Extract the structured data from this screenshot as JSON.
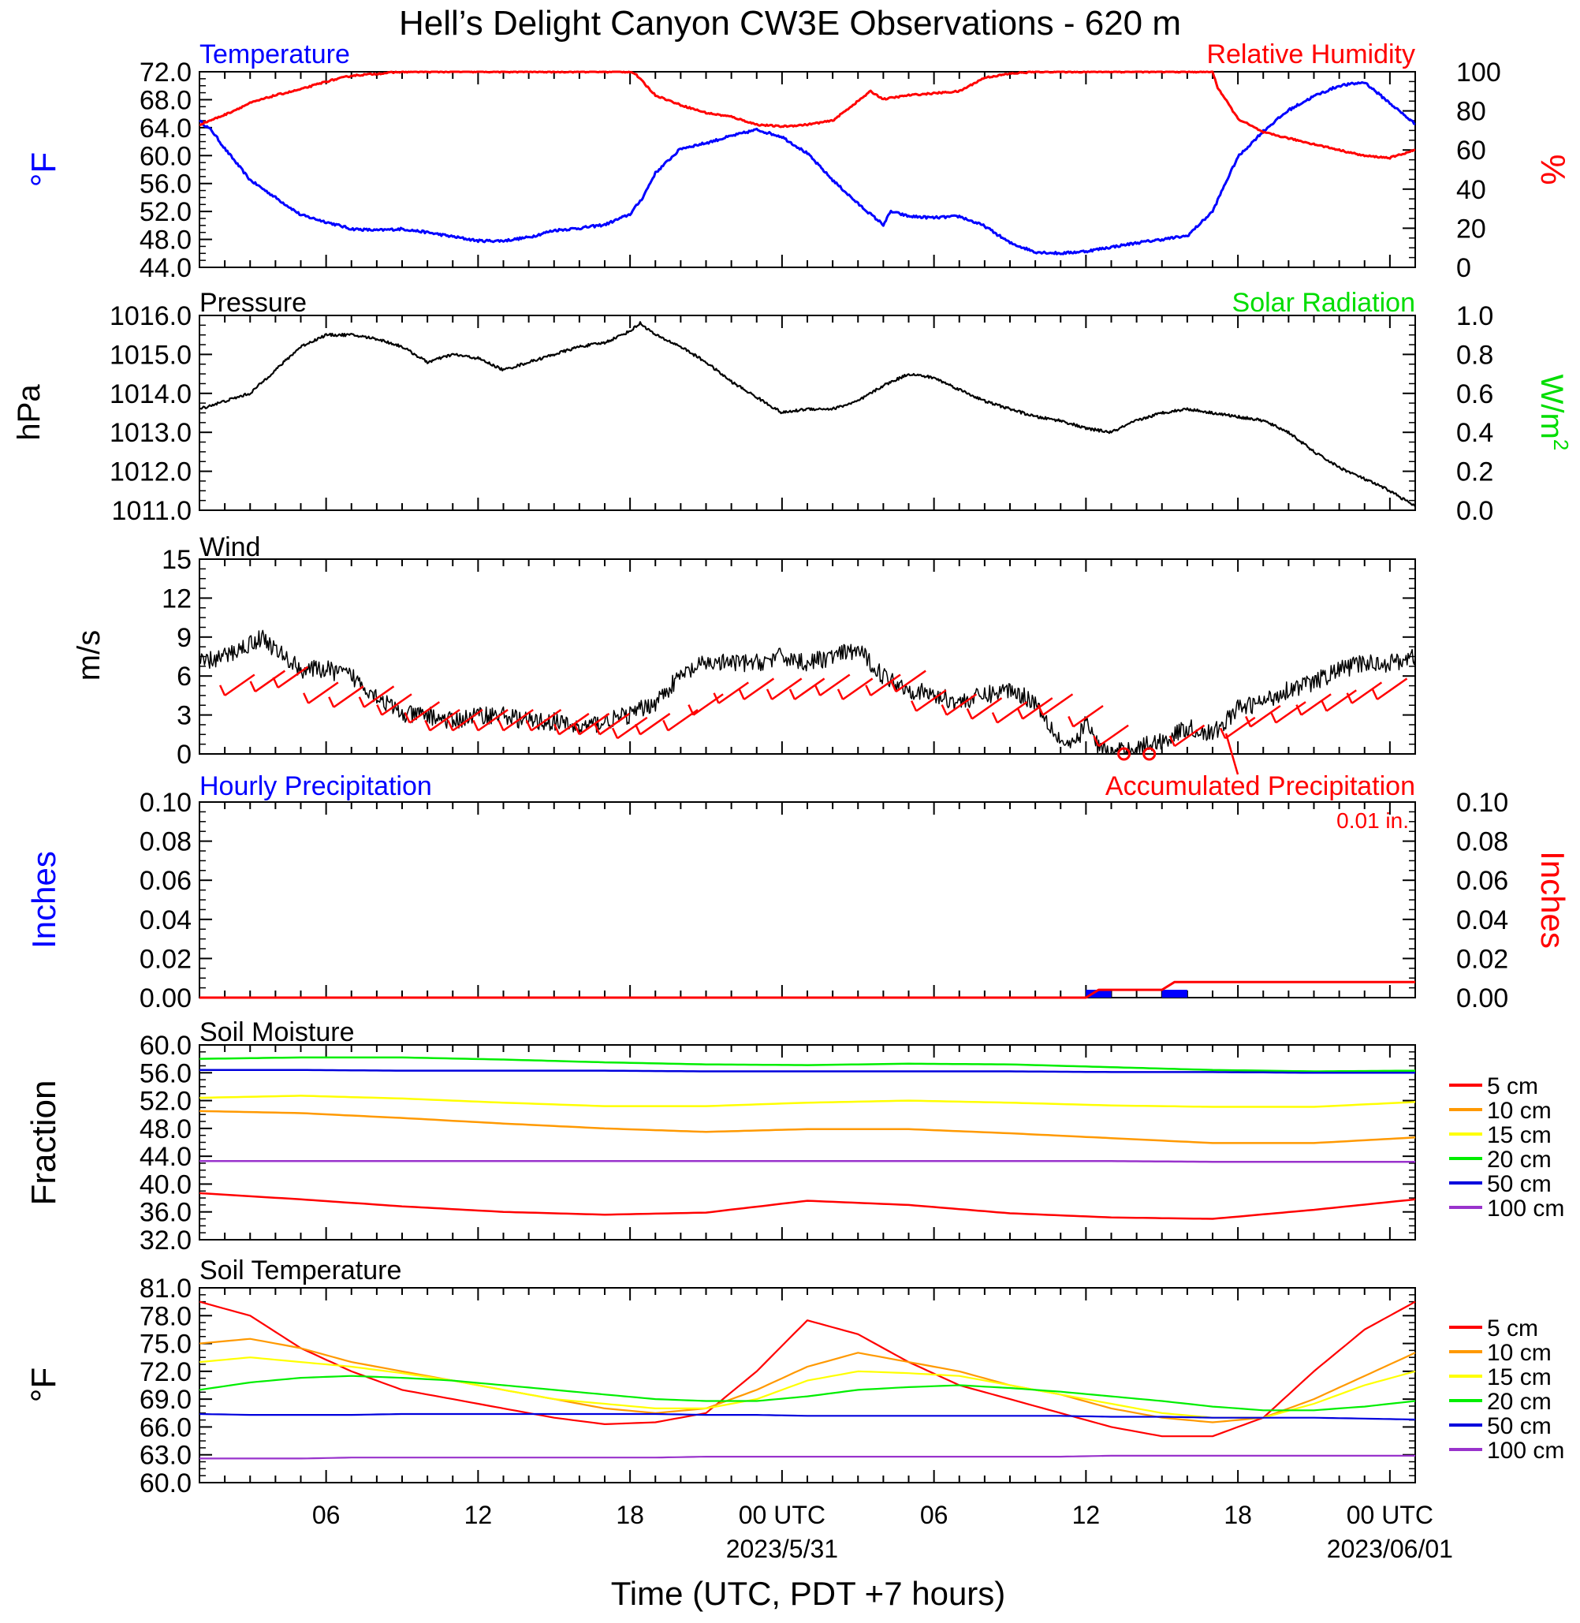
{
  "title": "Hell’s Delight Canyon CW3E Observations - 620 m",
  "x_axis": {
    "label": "Time (UTC, PDT +7 hours)",
    "range_hours": [
      0,
      48
    ],
    "major_ticks": [
      {
        "h": 5,
        "label": "06"
      },
      {
        "h": 11,
        "label": "12"
      },
      {
        "h": 17,
        "label": "18"
      },
      {
        "h": 23,
        "label": "00 UTC",
        "sublabel": "2023/5/31"
      },
      {
        "h": 29,
        "label": "06"
      },
      {
        "h": 35,
        "label": "12"
      },
      {
        "h": 41,
        "label": "18"
      },
      {
        "h": 47,
        "label": "00 UTC",
        "sublabel": "2023/06/01"
      }
    ]
  },
  "colors": {
    "temperature": "#0000ff",
    "humidity": "#ff0000",
    "solar": "#00dd00",
    "black": "#000000",
    "soil_5": "#ff0000",
    "soil_10": "#ff9900",
    "soil_15": "#ffff00",
    "soil_20": "#00ee00",
    "soil_50": "#0000dd",
    "soil_100": "#9933cc"
  },
  "chart_data": [
    {
      "id": "temp_rh",
      "type": "line",
      "title_left": "Temperature",
      "title_right": "Relative Humidity",
      "ylabel_left": "oF",
      "ylabel_right": "%",
      "ylim_left": [
        44.0,
        72.0
      ],
      "ylim_right": [
        0,
        100
      ],
      "yticks_left": [
        "44.0",
        "48.0",
        "52.0",
        "56.0",
        "60.0",
        "64.0",
        "68.0",
        "72.0"
      ],
      "yticks_right": [
        "0",
        "20",
        "40",
        "60",
        "80",
        "100"
      ],
      "series": [
        {
          "name": "Temperature",
          "axis": "left",
          "x": [
            0,
            0.5,
            1,
            2,
            3,
            4,
            5,
            6,
            7,
            8,
            9,
            10,
            11,
            12,
            13,
            14,
            15,
            16,
            17,
            17.5,
            18,
            19,
            20,
            21,
            22,
            23,
            24,
            25,
            26,
            27,
            27.3,
            28,
            29,
            30,
            31,
            32,
            33,
            34,
            35,
            36,
            37,
            38,
            39,
            40,
            40.5,
            41,
            42,
            43,
            44,
            45,
            46,
            47,
            48
          ],
          "y": [
            65.0,
            63.5,
            61.0,
            56.5,
            54.0,
            51.5,
            50.5,
            49.5,
            49.3,
            49.5,
            49.0,
            48.4,
            47.8,
            47.8,
            48.3,
            49.3,
            49.6,
            50.1,
            51.6,
            54.0,
            57.5,
            61.0,
            61.8,
            62.8,
            63.7,
            62.7,
            60.3,
            56.5,
            53.1,
            50.1,
            52.0,
            51.3,
            51.1,
            51.3,
            49.9,
            47.5,
            46.2,
            46.0,
            46.3,
            46.9,
            47.5,
            48.0,
            48.5,
            52.0,
            56.0,
            59.8,
            63.5,
            66.5,
            68.5,
            70.0,
            70.5,
            67.5,
            64.5
          ]
        },
        {
          "name": "Relative Humidity",
          "axis": "right",
          "x": [
            0,
            1,
            2,
            3,
            4,
            5,
            6,
            7,
            8,
            9,
            10,
            11,
            12,
            13,
            14,
            15,
            16,
            17,
            17.2,
            18,
            19,
            20,
            21,
            22,
            23,
            24,
            25,
            26,
            26.5,
            27,
            28,
            29,
            30,
            31,
            32,
            33,
            34,
            35,
            36,
            37,
            38,
            39,
            40,
            40.2,
            41,
            42,
            43,
            44,
            45,
            46,
            47,
            48
          ],
          "y": [
            73,
            78,
            84,
            88,
            91,
            95,
            98,
            99,
            100,
            100,
            100,
            100,
            100,
            100,
            100,
            100,
            100,
            100,
            99,
            88,
            83,
            79,
            77,
            73,
            72,
            73,
            75,
            85,
            90,
            86,
            88,
            89,
            90,
            97,
            99,
            100,
            100,
            100,
            100,
            100,
            100,
            100,
            100,
            92,
            76,
            69,
            66,
            63,
            60,
            57,
            56,
            60
          ]
        }
      ]
    },
    {
      "id": "pressure",
      "type": "line",
      "title_left": "Pressure",
      "title_right": "Solar Radiation",
      "ylabel_left": "hPa",
      "ylabel_right": "W/m2",
      "ylim_left": [
        1011.0,
        1016.0
      ],
      "ylim_right": [
        0.0,
        1.0
      ],
      "yticks_left": [
        "1011.0",
        "1012.0",
        "1013.0",
        "1014.0",
        "1015.0",
        "1016.0"
      ],
      "yticks_right": [
        "0.0",
        "0.2",
        "0.4",
        "0.6",
        "0.8",
        "1.0"
      ],
      "series": [
        {
          "name": "Pressure",
          "axis": "left",
          "x": [
            0,
            1,
            2,
            3,
            4,
            5,
            6,
            7,
            8,
            9,
            10,
            11,
            12,
            13,
            14,
            15,
            16,
            17,
            17.4,
            18,
            19,
            20,
            21,
            22,
            23,
            24,
            25,
            26,
            27,
            28,
            29,
            30,
            31,
            32,
            33,
            34,
            35,
            36,
            37,
            38,
            39,
            40,
            41,
            42,
            43,
            44,
            45,
            46,
            47,
            48
          ],
          "y": [
            1013.6,
            1013.8,
            1014.0,
            1014.6,
            1015.2,
            1015.5,
            1015.5,
            1015.4,
            1015.2,
            1014.8,
            1015.0,
            1014.9,
            1014.6,
            1014.8,
            1015.0,
            1015.2,
            1015.3,
            1015.6,
            1015.8,
            1015.5,
            1015.2,
            1014.8,
            1014.3,
            1013.9,
            1013.5,
            1013.6,
            1013.6,
            1013.8,
            1014.2,
            1014.5,
            1014.4,
            1014.1,
            1013.8,
            1013.6,
            1013.4,
            1013.3,
            1013.1,
            1013.0,
            1013.3,
            1013.5,
            1013.6,
            1013.5,
            1013.4,
            1013.3,
            1013.0,
            1012.5,
            1012.1,
            1011.8,
            1011.5,
            1011.1
          ]
        }
      ]
    },
    {
      "id": "wind",
      "type": "line",
      "title_left": "Wind",
      "ylabel_left": "m/s",
      "ylim_left": [
        0,
        15
      ],
      "yticks_left": [
        "0",
        "3",
        "6",
        "9",
        "12",
        "15"
      ],
      "series": [
        {
          "name": "Wind",
          "x": [
            0,
            1,
            2,
            2.5,
            3,
            4,
            5,
            6,
            7,
            8,
            9,
            10,
            11,
            12,
            13,
            14,
            15,
            16,
            17,
            18,
            19,
            20,
            21,
            22,
            23,
            24,
            25,
            26,
            27,
            28,
            29,
            30,
            31,
            32,
            33,
            34,
            34.5,
            35,
            35.5,
            36,
            37,
            38,
            39,
            40,
            41,
            42,
            43,
            44,
            45,
            46,
            47,
            48
          ],
          "y": [
            7.0,
            7.5,
            8.5,
            9.0,
            8.0,
            6.5,
            6.5,
            6.0,
            4.5,
            3.0,
            3.0,
            2.5,
            3.0,
            3.0,
            2.5,
            2.5,
            2.0,
            2.5,
            3.0,
            4.0,
            6.0,
            7.0,
            7.0,
            7.0,
            7.5,
            7.0,
            7.5,
            8.0,
            6.0,
            5.0,
            4.5,
            4.0,
            4.5,
            5.0,
            4.0,
            1.0,
            0.5,
            2.5,
            0.5,
            0.0,
            0.5,
            1.0,
            2.0,
            1.5,
            3.5,
            4.0,
            5.0,
            5.5,
            6.5,
            7.0,
            7.0,
            7.5
          ]
        }
      ],
      "barbs": {
        "x": [
          1,
          2.2,
          3.1,
          4.3,
          5.3,
          6.5,
          7.2,
          8.3,
          9.1,
          10.0,
          11.0,
          12.0,
          13.1,
          14.2,
          15.0,
          15.8,
          16.5,
          17.4,
          18.5,
          19.5,
          20.5,
          21.5,
          22.6,
          23.5,
          24.5,
          25.4,
          26.5,
          27.5,
          28.3,
          29.5,
          30.5,
          31.5,
          32.5,
          33.3,
          34.5,
          35.5,
          36.5,
          37.5,
          38.5,
          40.5,
          41.5,
          42.5,
          43.5,
          44.5,
          45.5,
          46.5
        ],
        "speed": [
          7.5,
          8.0,
          8.5,
          6.5,
          6.0,
          6.0,
          5.0,
          4.0,
          3.0,
          3.0,
          3.0,
          3.0,
          3.0,
          2.5,
          2.5,
          2.5,
          2.0,
          2.5,
          3.0,
          5.0,
          6.5,
          7.0,
          7.0,
          7.0,
          7.5,
          7.0,
          7.5,
          8.0,
          5.5,
          5.0,
          4.5,
          4.0,
          4.5,
          5.0,
          3.5,
          1.0,
          0.0,
          0.0,
          1.0,
          2.0,
          3.5,
          4.0,
          5.0,
          5.5,
          6.5,
          7.0
        ]
      }
    },
    {
      "id": "precip",
      "type": "bar",
      "title_left": "Hourly Precipitation",
      "title_right": "Accumulated Precipitation",
      "accum_total": "0.01 in.",
      "ylabel_left": "Inches",
      "ylabel_right": "Inches",
      "ylim_left": [
        0.0,
        0.1
      ],
      "ylim_right": [
        0.0,
        0.1
      ],
      "yticks_left": [
        "0.00",
        "0.02",
        "0.04",
        "0.06",
        "0.08",
        "0.10"
      ],
      "yticks_right": [
        "0.00",
        "0.02",
        "0.04",
        "0.06",
        "0.08",
        "0.10"
      ],
      "hourly": [
        {
          "h": 35,
          "value": 0.004
        },
        {
          "h": 38,
          "value": 0.004
        }
      ],
      "accumulated": {
        "x": [
          0,
          35,
          35.5,
          38,
          38.5,
          48
        ],
        "y": [
          0,
          0,
          0.004,
          0.004,
          0.008,
          0.008
        ]
      }
    },
    {
      "id": "soil_moisture",
      "type": "line",
      "title_left": "Soil Moisture",
      "ylabel_left": "Fraction",
      "ylim_left": [
        32.0,
        60.0
      ],
      "yticks_left": [
        "32.0",
        "36.0",
        "40.0",
        "44.0",
        "48.0",
        "52.0",
        "56.0",
        "60.0"
      ],
      "x": [
        0,
        4,
        8,
        12,
        16,
        20,
        24,
        28,
        32,
        36,
        40,
        44,
        48
      ],
      "series": [
        {
          "name": "5 cm",
          "values": [
            38.7,
            37.8,
            36.8,
            36.0,
            35.6,
            35.9,
            37.6,
            37.0,
            35.8,
            35.2,
            35.0,
            36.3,
            37.8
          ]
        },
        {
          "name": "10 cm",
          "values": [
            50.5,
            50.2,
            49.5,
            48.7,
            48.0,
            47.5,
            47.9,
            47.9,
            47.3,
            46.6,
            45.9,
            45.9,
            46.7
          ]
        },
        {
          "name": "15 cm",
          "values": [
            52.4,
            52.7,
            52.3,
            51.7,
            51.2,
            51.2,
            51.7,
            52.0,
            51.7,
            51.3,
            51.1,
            51.1,
            51.8
          ]
        },
        {
          "name": "20 cm",
          "values": [
            58.0,
            58.2,
            58.2,
            57.9,
            57.5,
            57.2,
            57.1,
            57.3,
            57.2,
            56.8,
            56.4,
            56.2,
            56.3
          ]
        },
        {
          "name": "50 cm",
          "values": [
            56.4,
            56.4,
            56.3,
            56.3,
            56.3,
            56.2,
            56.2,
            56.2,
            56.2,
            56.1,
            56.1,
            56.0,
            56.0
          ]
        },
        {
          "name": "100 cm",
          "values": [
            43.3,
            43.3,
            43.3,
            43.3,
            43.3,
            43.3,
            43.3,
            43.3,
            43.3,
            43.3,
            43.2,
            43.2,
            43.2
          ]
        }
      ]
    },
    {
      "id": "soil_temp",
      "type": "line",
      "title_left": "Soil Temperature",
      "ylabel_left": "oF",
      "ylim_left": [
        60.0,
        81.0
      ],
      "yticks_left": [
        "60.0",
        "63.0",
        "66.0",
        "69.0",
        "72.0",
        "75.0",
        "78.0",
        "81.0"
      ],
      "x": [
        0,
        2,
        4,
        6,
        8,
        10,
        12,
        14,
        16,
        18,
        20,
        22,
        24,
        26,
        28,
        30,
        32,
        34,
        36,
        38,
        40,
        42,
        44,
        46,
        48
      ],
      "series": [
        {
          "name": "5 cm",
          "values": [
            79.5,
            78.0,
            74.5,
            72.0,
            70.0,
            69.0,
            68.0,
            67.0,
            66.3,
            66.5,
            67.5,
            72.0,
            77.5,
            76.0,
            73.0,
            70.5,
            69.0,
            67.5,
            66.0,
            65.0,
            65.0,
            67.0,
            72.0,
            76.5,
            79.5
          ]
        },
        {
          "name": "10 cm",
          "values": [
            75.0,
            75.5,
            74.5,
            73.0,
            72.0,
            71.0,
            70.0,
            69.0,
            68.0,
            67.5,
            68.0,
            70.0,
            72.5,
            74.0,
            73.0,
            72.0,
            70.5,
            69.5,
            68.0,
            67.0,
            66.5,
            67.0,
            69.0,
            71.5,
            74.0
          ]
        },
        {
          "name": "15 cm",
          "values": [
            73.0,
            73.5,
            73.0,
            72.5,
            71.8,
            71.0,
            70.0,
            69.0,
            68.5,
            68.0,
            68.0,
            69.0,
            71.0,
            72.0,
            71.8,
            71.5,
            70.5,
            69.5,
            68.5,
            67.5,
            67.0,
            67.0,
            68.5,
            70.5,
            72.0
          ]
        },
        {
          "name": "20 cm",
          "values": [
            70.0,
            70.8,
            71.3,
            71.5,
            71.3,
            71.0,
            70.5,
            70.0,
            69.5,
            69.0,
            68.8,
            68.8,
            69.3,
            70.0,
            70.3,
            70.5,
            70.2,
            69.8,
            69.3,
            68.8,
            68.2,
            67.8,
            67.8,
            68.2,
            68.8
          ]
        },
        {
          "name": "50 cm",
          "values": [
            67.4,
            67.3,
            67.3,
            67.3,
            67.4,
            67.4,
            67.4,
            67.4,
            67.4,
            67.4,
            67.3,
            67.3,
            67.2,
            67.2,
            67.2,
            67.2,
            67.2,
            67.2,
            67.1,
            67.1,
            67.0,
            67.0,
            67.0,
            66.9,
            66.8
          ]
        },
        {
          "name": "100 cm",
          "values": [
            62.6,
            62.6,
            62.6,
            62.7,
            62.7,
            62.7,
            62.7,
            62.7,
            62.7,
            62.7,
            62.8,
            62.8,
            62.8,
            62.8,
            62.8,
            62.8,
            62.8,
            62.8,
            62.9,
            62.9,
            62.9,
            62.9,
            62.9,
            62.9,
            62.9
          ]
        }
      ]
    }
  ],
  "legend_soil": [
    "5 cm",
    "10 cm",
    "15 cm",
    "20 cm",
    "50 cm",
    "100 cm"
  ]
}
